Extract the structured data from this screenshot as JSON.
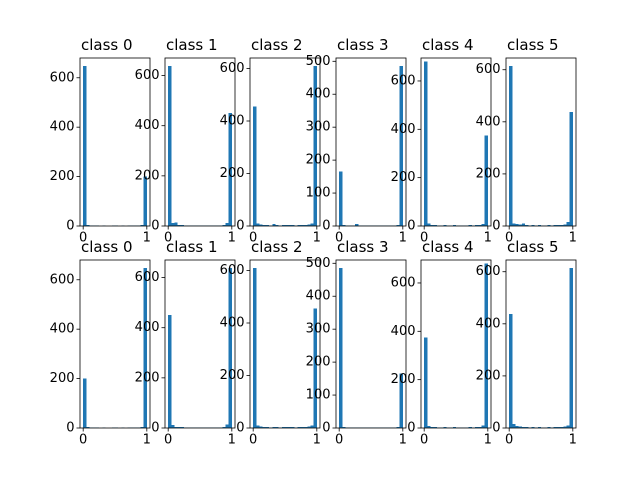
{
  "chart_data": {
    "type": "bar",
    "layout": {
      "rows": 2,
      "cols": 6
    },
    "bins": 20,
    "x_range": [
      0,
      1
    ],
    "bar_color": "#1f77b4",
    "panels": [
      {
        "title": "class 0",
        "x_ticks": [
          0,
          1
        ],
        "y_ticks": [
          0,
          200,
          400,
          600
        ],
        "ylim": [
          0,
          680
        ],
        "values": [
          648,
          5,
          3,
          2,
          2,
          1,
          2,
          1,
          1,
          2,
          2,
          1,
          2,
          1,
          2,
          2,
          3,
          3,
          5,
          200
        ]
      },
      {
        "title": "class 1",
        "x_ticks": [
          0,
          1
        ],
        "y_ticks": [
          0,
          200,
          400,
          600
        ],
        "ylim": [
          0,
          670
        ],
        "values": [
          638,
          12,
          14,
          4,
          4,
          3,
          3,
          2,
          2,
          3,
          2,
          2,
          2,
          2,
          3,
          3,
          3,
          4,
          12,
          450
        ]
      },
      {
        "title": "class 2",
        "x_ticks": [
          0,
          1
        ],
        "y_ticks": [
          0,
          200,
          400,
          600
        ],
        "ylim": [
          0,
          640
        ],
        "values": [
          455,
          10,
          6,
          4,
          4,
          2,
          8,
          3,
          2,
          3,
          4,
          3,
          3,
          2,
          4,
          4,
          3,
          5,
          10,
          610
        ]
      },
      {
        "title": "class 3",
        "x_ticks": [
          0,
          1
        ],
        "y_ticks": [
          0,
          100,
          200,
          300,
          400,
          500
        ],
        "ylim": [
          0,
          510
        ],
        "values": [
          165,
          3,
          2,
          2,
          1,
          6,
          1,
          2,
          1,
          1,
          2,
          1,
          2,
          1,
          2,
          2,
          1,
          2,
          3,
          485
        ]
      },
      {
        "title": "class 4",
        "x_ticks": [
          0,
          1
        ],
        "y_ticks": [
          0,
          200,
          400,
          600
        ],
        "ylim": [
          0,
          695
        ],
        "values": [
          680,
          10,
          5,
          4,
          3,
          3,
          4,
          2,
          2,
          5,
          3,
          2,
          2,
          3,
          4,
          3,
          4,
          5,
          8,
          375
        ]
      },
      {
        "title": "class 5",
        "x_ticks": [
          0,
          1
        ],
        "y_ticks": [
          0,
          200,
          400,
          600
        ],
        "ylim": [
          0,
          645
        ],
        "values": [
          615,
          10,
          7,
          5,
          10,
          3,
          2,
          3,
          2,
          3,
          2,
          2,
          3,
          2,
          3,
          3,
          4,
          5,
          15,
          438
        ]
      },
      {
        "title": "class 0",
        "x_ticks": [
          0,
          1
        ],
        "y_ticks": [
          0,
          200,
          400,
          600
        ],
        "ylim": [
          0,
          680
        ],
        "values": [
          200,
          5,
          3,
          2,
          2,
          1,
          2,
          1,
          1,
          2,
          2,
          1,
          2,
          1,
          2,
          2,
          3,
          3,
          5,
          648
        ]
      },
      {
        "title": "class 1",
        "x_ticks": [
          0,
          1
        ],
        "y_ticks": [
          0,
          200,
          400,
          600
        ],
        "ylim": [
          0,
          670
        ],
        "values": [
          450,
          12,
          4,
          4,
          4,
          3,
          3,
          2,
          2,
          3,
          2,
          2,
          2,
          2,
          3,
          3,
          3,
          4,
          14,
          638
        ]
      },
      {
        "title": "class 2",
        "x_ticks": [
          0,
          1
        ],
        "y_ticks": [
          0,
          200,
          400,
          600
        ],
        "ylim": [
          0,
          640
        ],
        "values": [
          610,
          10,
          5,
          4,
          4,
          2,
          3,
          3,
          2,
          3,
          4,
          3,
          3,
          2,
          4,
          4,
          3,
          5,
          10,
          455
        ]
      },
      {
        "title": "class 3",
        "x_ticks": [
          0,
          1
        ],
        "y_ticks": [
          0,
          100,
          200,
          300,
          400,
          500
        ],
        "ylim": [
          0,
          510
        ],
        "values": [
          485,
          3,
          2,
          2,
          1,
          2,
          1,
          2,
          1,
          1,
          2,
          1,
          2,
          1,
          2,
          2,
          1,
          2,
          3,
          165
        ]
      },
      {
        "title": "class 4",
        "x_ticks": [
          0,
          1
        ],
        "y_ticks": [
          0,
          200,
          400,
          600
        ],
        "ylim": [
          0,
          695
        ],
        "values": [
          375,
          8,
          5,
          4,
          3,
          3,
          4,
          2,
          2,
          5,
          3,
          2,
          2,
          3,
          4,
          3,
          4,
          5,
          10,
          680
        ]
      },
      {
        "title": "class 5",
        "x_ticks": [
          0,
          1
        ],
        "y_ticks": [
          0,
          200,
          400,
          600
        ],
        "ylim": [
          0,
          645
        ],
        "values": [
          438,
          15,
          7,
          5,
          3,
          3,
          2,
          3,
          2,
          3,
          2,
          2,
          3,
          2,
          3,
          3,
          4,
          5,
          10,
          615
        ]
      }
    ]
  }
}
